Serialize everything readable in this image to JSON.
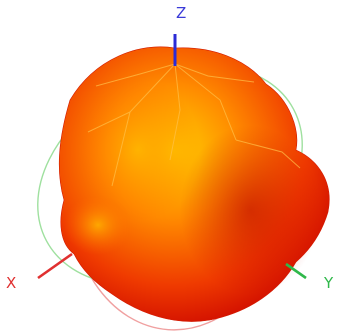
{
  "axes": {
    "x": {
      "label": "X",
      "color": "#e03030"
    },
    "y": {
      "label": "Y",
      "color": "#2fb84a"
    },
    "z": {
      "label": "Z",
      "color": "#2b2bd6"
    }
  },
  "cut_planes": {
    "xz_color": "#f0a0a0",
    "yz_color": "#9fe09f"
  },
  "surface": {
    "dark_color": "#c80000",
    "mid_color": "#ef3a00",
    "bright_color": "#ffb400"
  }
}
